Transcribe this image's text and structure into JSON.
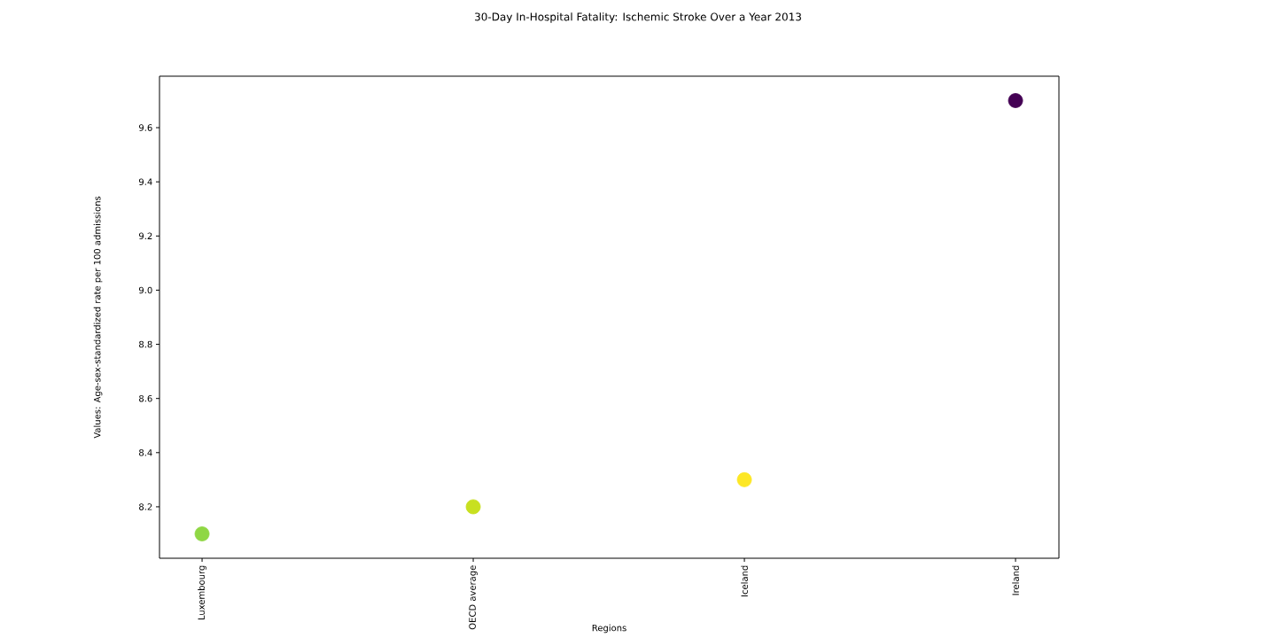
{
  "chart_data": {
    "type": "scatter",
    "title": "30-Day In-Hospital Fatality: Ischemic Stroke Over a Year 2013",
    "xlabel": "Regions",
    "ylabel": "Values: Age-sex-standardized rate per 100 admissions",
    "categories": [
      "Luxembourg",
      "OECD average",
      "Iceland",
      "Ireland"
    ],
    "values": [
      8.1,
      8.2,
      8.3,
      9.7
    ],
    "colors": [
      "#8fd744",
      "#c8e020",
      "#fde725",
      "#440154"
    ],
    "marker": "circle",
    "ylim": [
      8.01,
      9.79
    ],
    "yticks": [
      8.2,
      8.4,
      8.6,
      8.8,
      {
        "value": 9.0,
        "label": "9.0"
      },
      9.2,
      9.4,
      9.6
    ]
  }
}
